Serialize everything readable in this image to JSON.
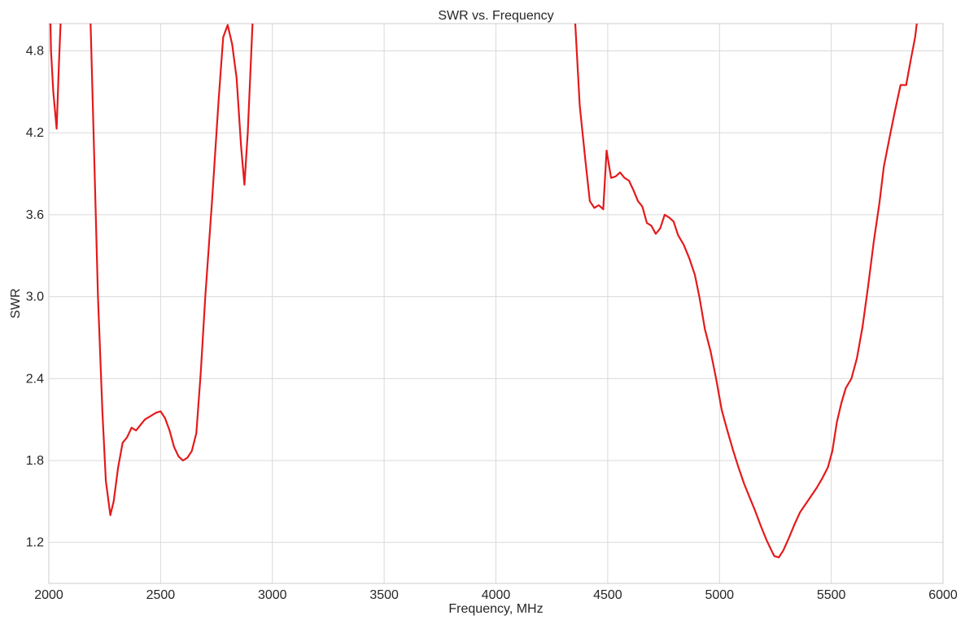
{
  "chart_data": {
    "type": "line",
    "title": "SWR vs. Frequency",
    "xlabel": "Frequency, MHz",
    "ylabel": "SWR",
    "xlim": [
      2000,
      6000
    ],
    "ylim": [
      0.9,
      5.0
    ],
    "xticks": [
      2000,
      2500,
      3000,
      3500,
      4000,
      4500,
      5000,
      5500,
      6000
    ],
    "yticks": [
      1.2,
      1.8,
      2.4,
      3.0,
      3.6,
      4.2,
      4.8
    ],
    "ytick_labels": [
      "1.2",
      "1.8",
      "2.4",
      "3.0",
      "3.6",
      "4.2",
      "4.8"
    ],
    "grid": true,
    "line_color": "#e41a1c",
    "series": [
      {
        "segments": [
          [
            [
              2000,
              5.6
            ],
            [
              2010,
              4.8
            ],
            [
              2020,
              4.5
            ],
            [
              2035,
              4.23
            ],
            [
              2045,
              4.7
            ],
            [
              2060,
              5.3
            ]
          ],
          [
            [
              2180,
              5.4
            ],
            [
              2200,
              4.2
            ],
            [
              2220,
              3.0
            ],
            [
              2240,
              2.15
            ],
            [
              2255,
              1.65
            ],
            [
              2275,
              1.4
            ],
            [
              2290,
              1.5
            ],
            [
              2310,
              1.75
            ],
            [
              2330,
              1.93
            ],
            [
              2350,
              1.97
            ],
            [
              2370,
              2.04
            ],
            [
              2390,
              2.02
            ],
            [
              2410,
              2.06
            ],
            [
              2430,
              2.1
            ],
            [
              2460,
              2.13
            ],
            [
              2480,
              2.15
            ],
            [
              2500,
              2.16
            ],
            [
              2520,
              2.11
            ],
            [
              2540,
              2.02
            ],
            [
              2560,
              1.9
            ],
            [
              2580,
              1.83
            ],
            [
              2600,
              1.8
            ],
            [
              2620,
              1.82
            ],
            [
              2640,
              1.87
            ],
            [
              2660,
              2.0
            ],
            [
              2680,
              2.45
            ],
            [
              2700,
              3.0
            ],
            [
              2730,
              3.7
            ],
            [
              2760,
              4.45
            ],
            [
              2780,
              4.9
            ],
            [
              2800,
              4.99
            ],
            [
              2820,
              4.85
            ],
            [
              2840,
              4.6
            ],
            [
              2860,
              4.1
            ],
            [
              2875,
              3.82
            ],
            [
              2890,
              4.2
            ],
            [
              2910,
              4.95
            ],
            [
              2925,
              5.5
            ]
          ],
          [
            [
              4340,
              5.6
            ],
            [
              4355,
              5.0
            ],
            [
              4375,
              4.4
            ],
            [
              4400,
              4.0
            ],
            [
              4420,
              3.7
            ],
            [
              4440,
              3.65
            ],
            [
              4460,
              3.67
            ],
            [
              4480,
              3.64
            ],
            [
              4495,
              4.07
            ],
            [
              4515,
              3.87
            ],
            [
              4535,
              3.88
            ],
            [
              4555,
              3.91
            ],
            [
              4575,
              3.87
            ],
            [
              4595,
              3.85
            ],
            [
              4615,
              3.78
            ],
            [
              4635,
              3.7
            ],
            [
              4655,
              3.66
            ],
            [
              4675,
              3.54
            ],
            [
              4695,
              3.52
            ],
            [
              4715,
              3.46
            ],
            [
              4735,
              3.5
            ],
            [
              4755,
              3.6
            ],
            [
              4775,
              3.58
            ],
            [
              4795,
              3.55
            ],
            [
              4815,
              3.45
            ],
            [
              4840,
              3.38
            ],
            [
              4865,
              3.28
            ],
            [
              4890,
              3.16
            ],
            [
              4910,
              3.0
            ],
            [
              4935,
              2.76
            ],
            [
              4960,
              2.6
            ],
            [
              4985,
              2.4
            ],
            [
              5010,
              2.17
            ],
            [
              5035,
              2.02
            ],
            [
              5060,
              1.88
            ],
            [
              5085,
              1.75
            ],
            [
              5110,
              1.63
            ],
            [
              5135,
              1.53
            ],
            [
              5160,
              1.43
            ],
            [
              5185,
              1.32
            ],
            [
              5210,
              1.22
            ],
            [
              5230,
              1.15
            ],
            [
              5245,
              1.1
            ],
            [
              5265,
              1.09
            ],
            [
              5285,
              1.14
            ],
            [
              5310,
              1.23
            ],
            [
              5335,
              1.33
            ],
            [
              5360,
              1.42
            ],
            [
              5385,
              1.48
            ],
            [
              5410,
              1.54
            ],
            [
              5435,
              1.6
            ],
            [
              5460,
              1.67
            ],
            [
              5485,
              1.75
            ],
            [
              5505,
              1.87
            ],
            [
              5525,
              2.08
            ],
            [
              5545,
              2.22
            ],
            [
              5565,
              2.33
            ],
            [
              5590,
              2.4
            ],
            [
              5615,
              2.55
            ],
            [
              5640,
              2.78
            ],
            [
              5665,
              3.08
            ],
            [
              5690,
              3.4
            ],
            [
              5715,
              3.68
            ],
            [
              5735,
              3.95
            ],
            [
              5760,
              4.16
            ],
            [
              5785,
              4.36
            ],
            [
              5810,
              4.55
            ],
            [
              5835,
              4.55
            ],
            [
              5855,
              4.73
            ],
            [
              5875,
              4.9
            ],
            [
              5890,
              5.1
            ],
            [
              5905,
              5.4
            ]
          ]
        ]
      }
    ]
  }
}
